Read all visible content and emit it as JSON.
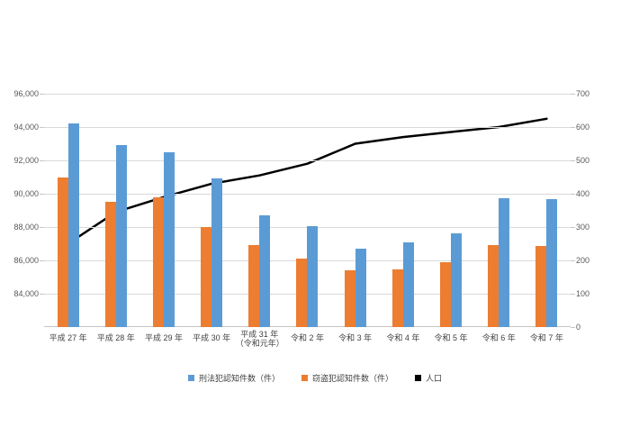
{
  "chart_data": {
    "type": "bar",
    "subtype": "clustered-bar-with-line-combo",
    "title": "",
    "xlabel": "",
    "ylabel_left": "",
    "ylabel_right": "",
    "grid": true,
    "legend_position": "bottom",
    "categories": [
      "平成27年",
      "平成28年",
      "平成29年",
      "平成30年",
      "平成31年（令和元年）",
      "令和2年",
      "令和3年",
      "令和4年",
      "令和5年",
      "令和6年",
      "令和7年"
    ],
    "category_display": [
      [
        "平成 27 年"
      ],
      [
        "平成 28 年"
      ],
      [
        "平成 29 年"
      ],
      [
        "平成 30 年"
      ],
      [
        "平成 31 年",
        "（令和元年）"
      ],
      [
        "令和 2 年"
      ],
      [
        "令和 3 年"
      ],
      [
        "令和 4 年"
      ],
      [
        "令和 5 年"
      ],
      [
        "令和 6 年"
      ],
      [
        "令和 7 年"
      ]
    ],
    "series": [
      {
        "name": "刑法犯認知件数（件）",
        "type": "bar",
        "axis": "left",
        "color": "#5B9BD5",
        "values": [
          94200,
          92900,
          92500,
          90900,
          88700,
          88050,
          86700,
          87100,
          87650,
          89750,
          89700
        ]
      },
      {
        "name": "窃盗犯認知件数（件）",
        "type": "bar",
        "axis": "left",
        "color": "#ED7D31",
        "values": [
          91000,
          89500,
          89800,
          88000,
          86900,
          86100,
          85400,
          85450,
          85900,
          86900,
          86850
        ]
      },
      {
        "name": "人口",
        "type": "line",
        "axis": "right",
        "color": "#000000",
        "values": [
          250,
          345,
          390,
          430,
          455,
          490,
          550,
          570,
          585,
          600,
          625
        ]
      }
    ],
    "bar_draw_order": [
      1,
      0
    ],
    "left_axis": {
      "min": 82000,
      "max": 96000,
      "tick_step": 2000,
      "tick_labels": [
        "96,000",
        "94,000",
        "92,000",
        "90,000",
        "88,000",
        "86,000",
        "84,000"
      ]
    },
    "right_axis": {
      "min": 0,
      "max": 700,
      "tick_step": 100,
      "tick_labels": [
        "700",
        "600",
        "500",
        "400",
        "300",
        "200",
        "100",
        "0"
      ]
    },
    "gridline_color": "#D9D9D9",
    "axis_text_color": "#595959"
  },
  "legend": {
    "items": [
      {
        "label": "刑法犯認知件数（件）",
        "color": "#5B9BD5"
      },
      {
        "label": "窃盗犯認知件数（件）",
        "color": "#ED7D31"
      },
      {
        "label": "人口",
        "color": "#000000"
      }
    ]
  }
}
